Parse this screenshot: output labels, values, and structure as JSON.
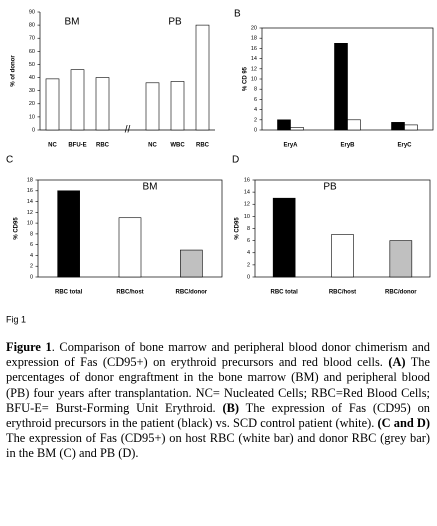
{
  "chart_data": [
    {
      "type": "bar",
      "panel": null,
      "frame": "axes",
      "ylabel": "% of donor",
      "groups": [
        "BM",
        "PB"
      ],
      "categories": [
        "NC",
        "BFU-E",
        "RBC",
        null,
        "NC",
        "WBC",
        "RBC"
      ],
      "axis_break_label": "//",
      "values": [
        39,
        46,
        40,
        null,
        36,
        37,
        80
      ],
      "color": "#ffffff",
      "ylim": [
        0,
        90
      ],
      "yticks": [
        0,
        10,
        20,
        30,
        40,
        50,
        60,
        70,
        80,
        90
      ]
    },
    {
      "type": "grouped-bar",
      "panel": "B",
      "frame": "box",
      "ylabel": "% CD 95",
      "categories": [
        "EryA",
        "EryB",
        "EryC"
      ],
      "series": [
        {
          "color": "#000000",
          "values": [
            2,
            17,
            1.5
          ]
        },
        {
          "color": "#ffffff",
          "values": [
            0.5,
            2,
            1
          ]
        }
      ],
      "ylim": [
        0,
        20
      ],
      "yticks": [
        0,
        2,
        4,
        6,
        8,
        10,
        12,
        14,
        16,
        18,
        20
      ]
    },
    {
      "type": "bar",
      "panel": "C",
      "frame": "box",
      "title": "BM",
      "ylabel": "% CD95",
      "categories": [
        "RBC total",
        "RBC/host",
        "RBC/donor"
      ],
      "values": [
        16,
        11,
        5
      ],
      "colors": [
        "#000000",
        "#ffffff",
        "#c0c0c0"
      ],
      "ylim": [
        0,
        18
      ],
      "yticks": [
        0,
        2,
        4,
        6,
        8,
        10,
        12,
        14,
        16,
        18
      ]
    },
    {
      "type": "bar",
      "panel": "D",
      "frame": "box",
      "title": "PB",
      "ylabel": "% CD95",
      "categories": [
        "RBC total",
        "RBC/host",
        "RBC/donor"
      ],
      "values": [
        13,
        7,
        6
      ],
      "colors": [
        "#000000",
        "#ffffff",
        "#c0c0c0"
      ],
      "ylim": [
        0,
        16
      ],
      "yticks": [
        0,
        2,
        4,
        6,
        8,
        10,
        12,
        14,
        16
      ]
    }
  ],
  "figure_label": "Fig 1",
  "caption": [
    {
      "text": "Figure 1",
      "bold": true
    },
    {
      "text": ". Comparison of bone marrow and peripheral blood donor chimerism and expression of Fas (CD95+) on erythroid precursors and red blood cells. ",
      "bold": false
    },
    {
      "text": "(A)",
      "bold": true
    },
    {
      "text": " The percentages of donor engraftment in the bone marrow (BM) and peripheral blood (PB) four years after transplantation. NC= Nucleated Cells; RBC=Red Blood Cells; BFU-E= Burst-Forming Unit Erythroid. ",
      "bold": false
    },
    {
      "text": "(B)",
      "bold": true
    },
    {
      "text": " The expression of Fas (CD95) on erythroid precursors in the patient (black) vs. SCD control patient (white). ",
      "bold": false
    },
    {
      "text": "(C and D)",
      "bold": true
    },
    {
      "text": " The expression of Fas (CD95+) on host RBC (white bar) and donor RBC (grey bar) in the BM (C) and PB (D).",
      "bold": false
    }
  ]
}
